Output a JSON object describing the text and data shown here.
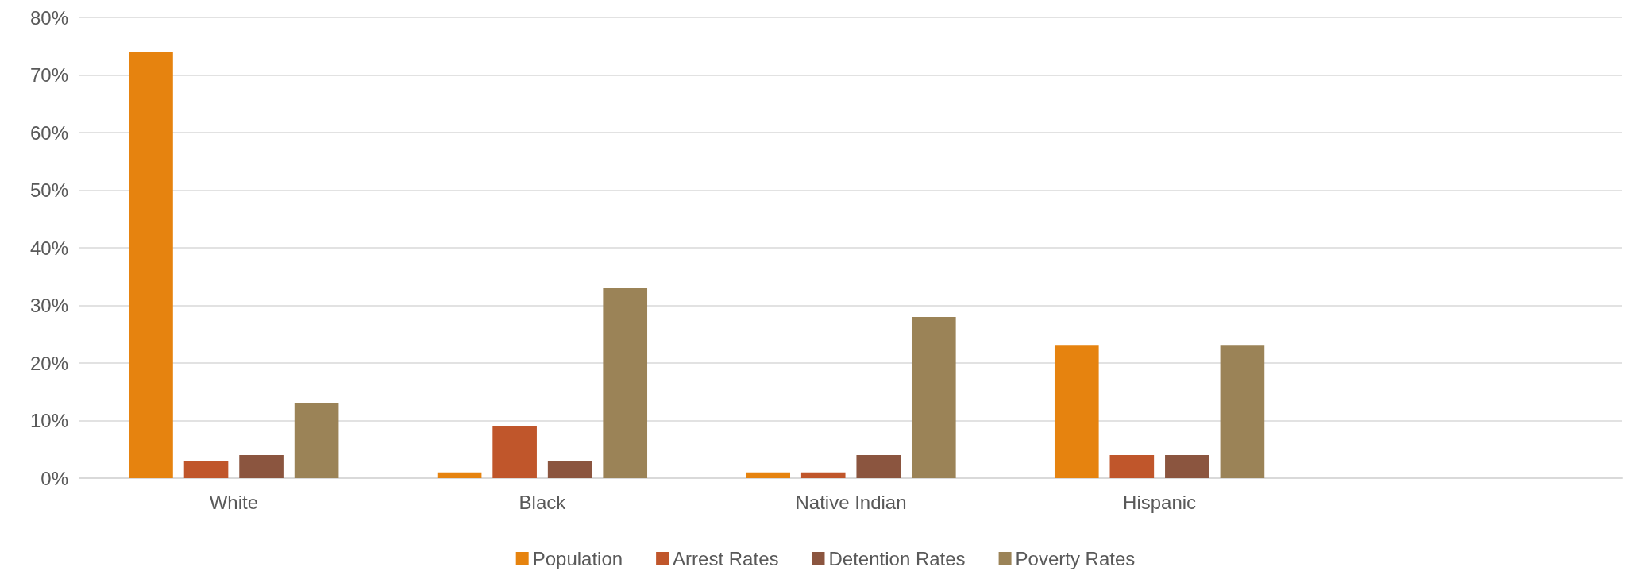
{
  "chart_data": {
    "type": "bar",
    "categories": [
      "White",
      "Black",
      "Native Indian",
      "Hispanic",
      null
    ],
    "series": [
      {
        "name": "Population",
        "color": "#e6830f",
        "values": [
          74,
          1,
          1,
          23,
          null
        ]
      },
      {
        "name": "Arrest Rates",
        "color": "#c0562b",
        "values": [
          3,
          9,
          1,
          4,
          null
        ]
      },
      {
        "name": "Detention Rates",
        "color": "#8b553f",
        "values": [
          4,
          3,
          4,
          4,
          null
        ]
      },
      {
        "name": "Poverty Rates",
        "color": "#9b8357",
        "values": [
          13,
          33,
          28,
          23,
          null
        ]
      }
    ],
    "ylim": [
      0,
      80
    ],
    "yticks": [
      {
        "value": 0,
        "label": "0%"
      },
      {
        "value": 10,
        "label": "10%"
      },
      {
        "value": 20,
        "label": "20%"
      },
      {
        "value": 30,
        "label": "30%"
      },
      {
        "value": 40,
        "label": "40%"
      },
      {
        "value": 50,
        "label": "50%"
      },
      {
        "value": 60,
        "label": "60%"
      },
      {
        "value": 70,
        "label": "70%"
      },
      {
        "value": 80,
        "label": "80%"
      }
    ],
    "grid": "y",
    "legend": "bottom"
  }
}
